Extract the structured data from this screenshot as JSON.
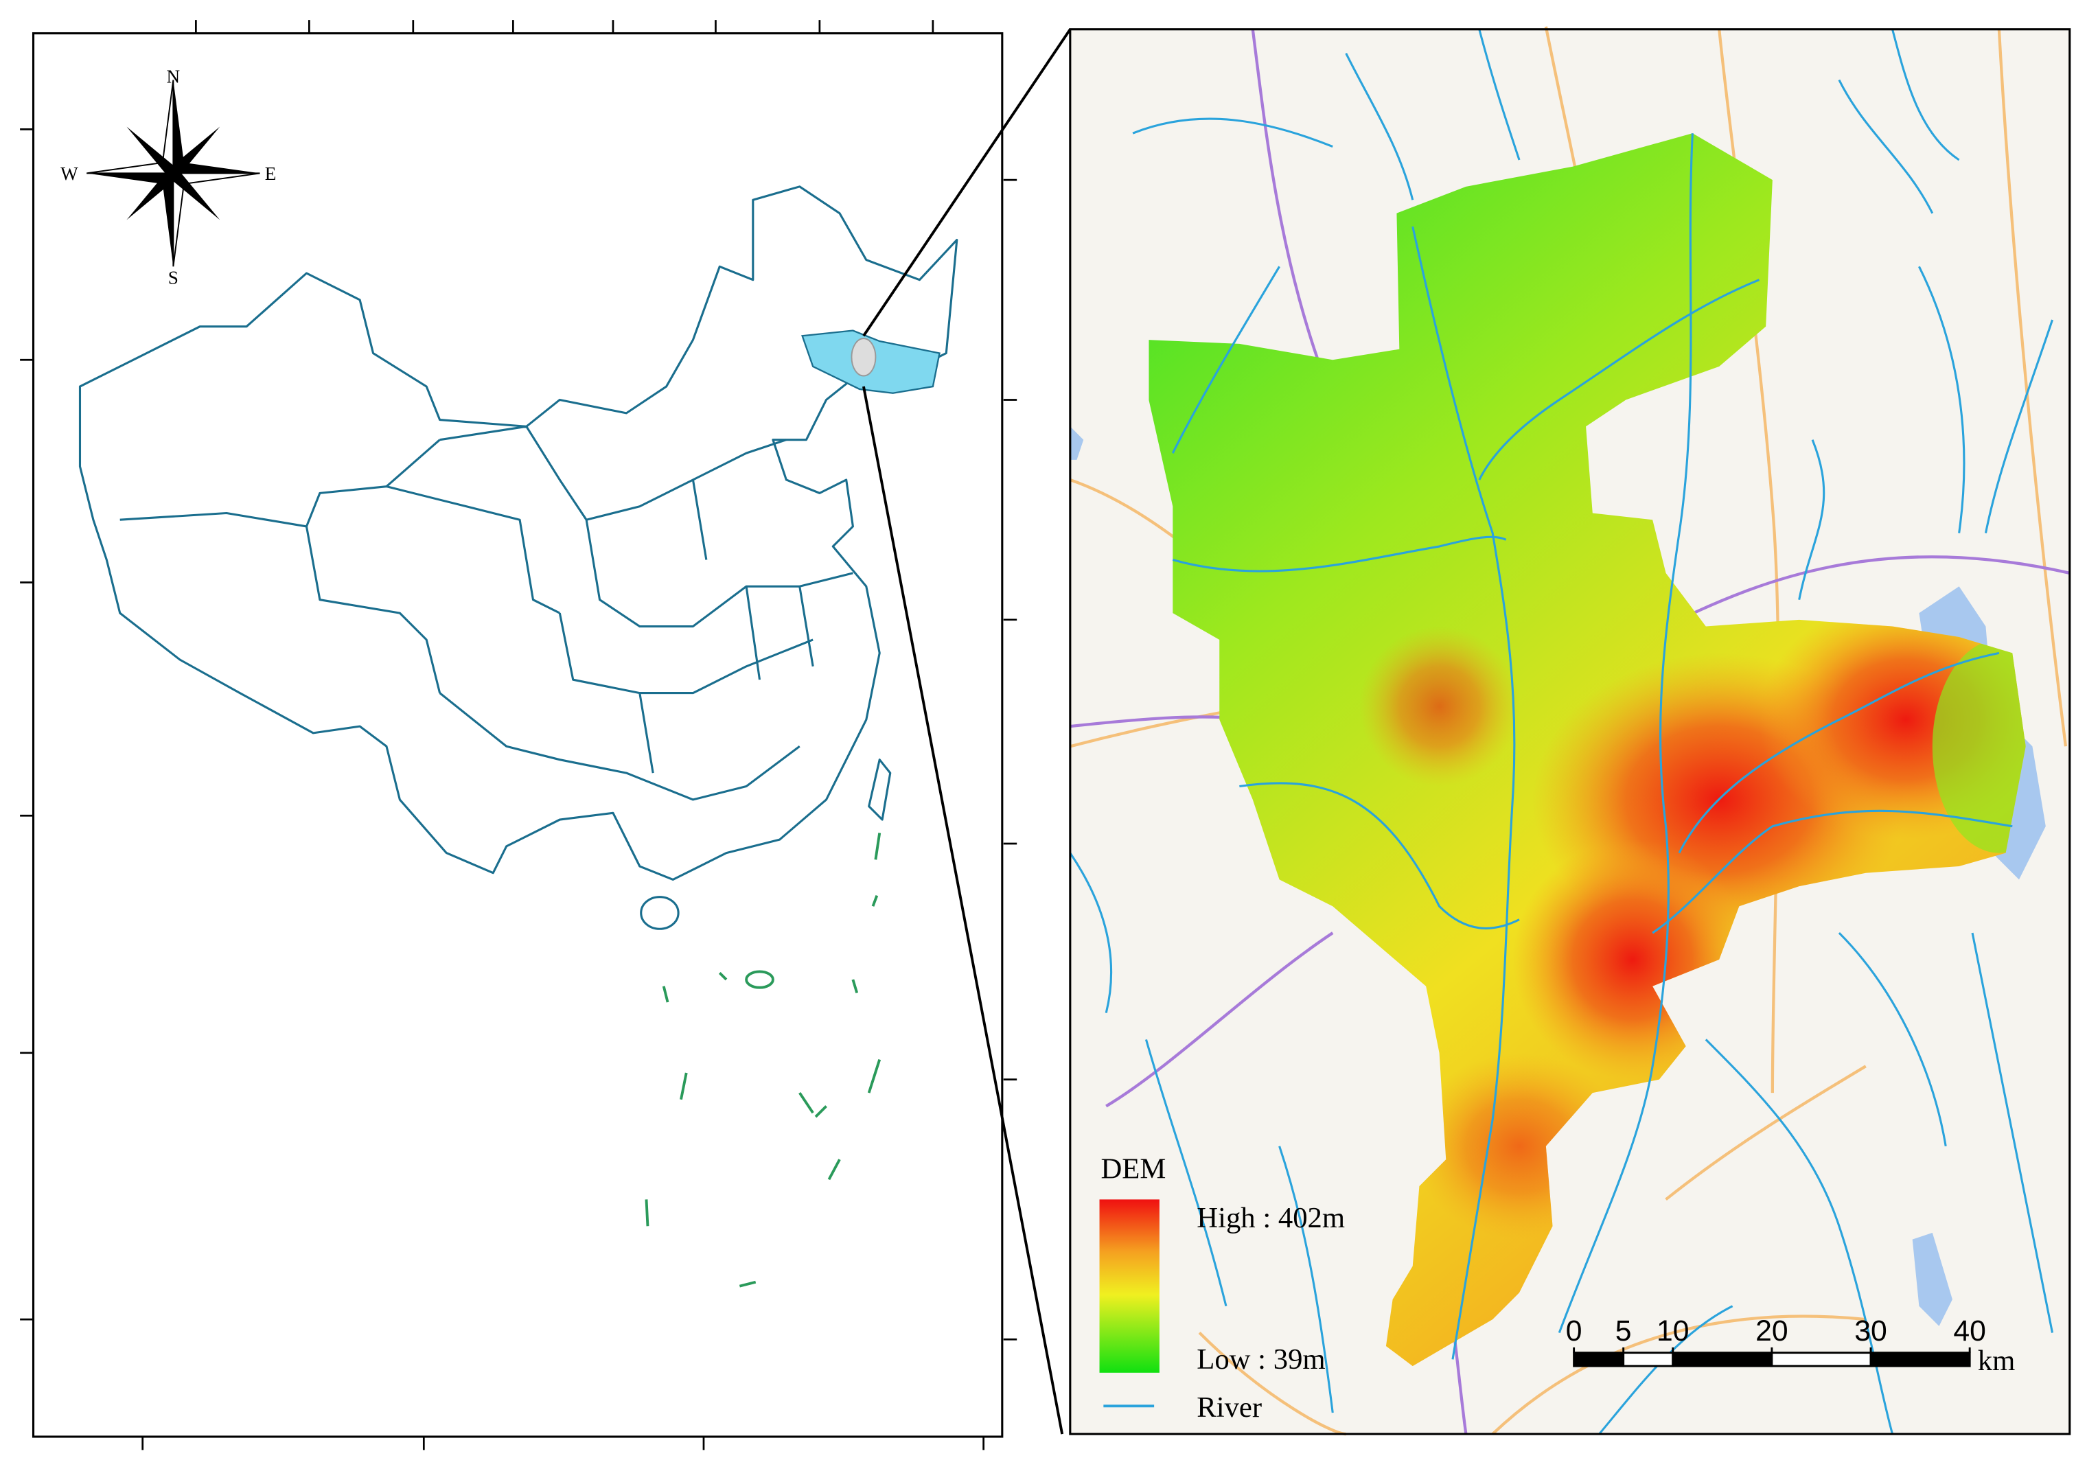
{
  "compass": {
    "north": "N",
    "west": "W",
    "east": "E",
    "south": "S"
  },
  "legend": {
    "title": "DEM",
    "high": "High : 402m",
    "low": "Low : 39m",
    "river": "River"
  },
  "scale_bar": {
    "ticks": [
      0,
      5,
      10,
      20,
      30,
      40
    ],
    "unit": "km"
  }
}
